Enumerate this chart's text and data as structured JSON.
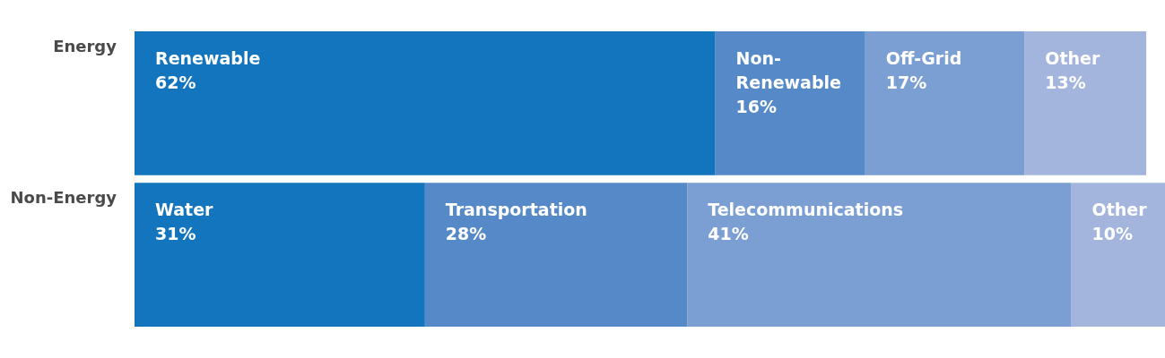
{
  "chart_data": {
    "type": "bar",
    "orientation": "horizontal",
    "stacked": true,
    "categories": [
      "Energy",
      "Non-Energy"
    ],
    "xlim": [
      0,
      110
    ],
    "tick_labels": "y",
    "series": [
      {
        "color": "#1275bd",
        "values": [
          62,
          31
        ],
        "value_labels": [
          "Renewable 62%",
          "Water 31%"
        ]
      },
      {
        "color": "#5589c7",
        "values": [
          16,
          28
        ],
        "value_labels": [
          "Non-Renewable 16%",
          "Transportation 28%"
        ]
      },
      {
        "color": "#7b9fd3",
        "values": [
          17,
          41
        ],
        "value_labels": [
          "Off-Grid 17%",
          "Telecommunications 41%"
        ]
      },
      {
        "color": "#a3b5dc",
        "values": [
          13,
          10
        ],
        "value_labels": [
          "Other 13%",
          "Other 10%"
        ]
      }
    ]
  }
}
